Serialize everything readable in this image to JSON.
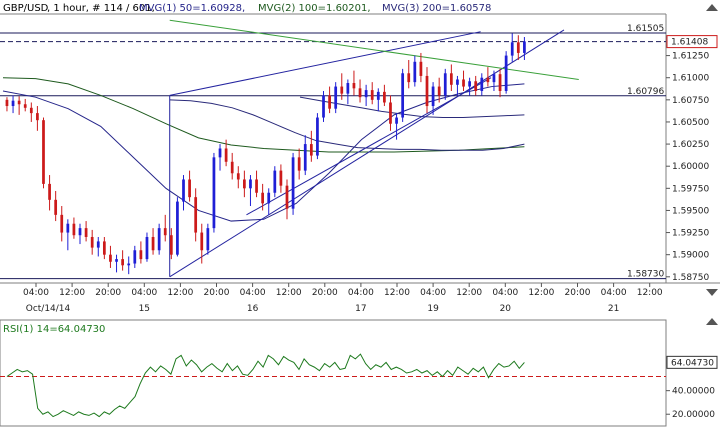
{
  "header": {
    "symbol": "GBP/USD",
    "info": ", 1 hour, # 114 / 601,",
    "mvg1": "MVG(1) 50=1.60928,",
    "mvg2": "MVG(2) 100=1.60201,",
    "mvg3": "MVG(3) 200=1.60578",
    "rsi": "RSI(1) 14=64.04730"
  },
  "colors": {
    "bull": "#1f1fd6",
    "bear": "#cc1a1a",
    "ma50": "#25258a",
    "ma100": "#1e5a1e",
    "ma200": "#2a2a7a",
    "trend": "#2424a0",
    "greenLine": "#3aa03a",
    "rsi": "#1e7a1e",
    "rsiLevel": "#cc1a1a",
    "dashed": "#1a1a5a"
  },
  "chart_data": [
    {
      "type": "candlestick",
      "title": "GBP/USD , 1 hour, # 114 / 601",
      "ylim": [
        1.5868,
        1.6172
      ],
      "yticks": [
        "1.61250",
        "1.61000",
        "1.60750",
        "1.60500",
        "1.60250",
        "1.60000",
        "1.59750",
        "1.59500",
        "1.59250",
        "1.59000",
        "1.58750"
      ],
      "price_labels": {
        "top": "1.61505",
        "current": "1.61408",
        "mid": "1.60796",
        "bottom": "1.58730"
      },
      "xticks": [
        {
          "t": "04:00",
          "d": "Oct/14/14"
        },
        {
          "t": "12:00",
          "d": ""
        },
        {
          "t": "20:00",
          "d": ""
        },
        {
          "t": "04:00",
          "d": "15"
        },
        {
          "t": "12:00",
          "d": ""
        },
        {
          "t": "20:00",
          "d": ""
        },
        {
          "t": "04:00",
          "d": "16"
        },
        {
          "t": "12:00",
          "d": ""
        },
        {
          "t": "20:00",
          "d": ""
        },
        {
          "t": "04:00",
          "d": "17"
        },
        {
          "t": "12:00",
          "d": ""
        },
        {
          "t": "04:00",
          "d": "19"
        },
        {
          "t": "12:00",
          "d": ""
        },
        {
          "t": "04:00",
          "d": "20"
        },
        {
          "t": "12:00",
          "d": ""
        },
        {
          "t": "20:00",
          "d": ""
        },
        {
          "t": "04:00",
          "d": "21"
        },
        {
          "t": "12:00",
          "d": ""
        }
      ],
      "series": [
        {
          "name": "MVG(1) 50",
          "value": "1.60928",
          "values": [
            1.6085,
            1.6078,
            1.6065,
            1.6045,
            1.601,
            1.5975,
            1.595,
            1.5938,
            1.594,
            1.5958,
            1.5992,
            1.603,
            1.6058,
            1.6072,
            1.6082,
            1.609,
            1.6093
          ]
        },
        {
          "name": "MVG(2) 100",
          "value": "1.60201",
          "values": [
            1.61,
            1.6099,
            1.6093,
            1.608,
            1.6065,
            1.6048,
            1.6032,
            1.6024,
            1.602,
            1.6018,
            1.6016,
            1.6016,
            1.6016,
            1.6017,
            1.6018,
            1.602,
            1.6022
          ]
        },
        {
          "name": "MVG(3) 200",
          "value": "1.60578",
          "values": [
            1.6078,
            1.6074,
            1.607,
            1.6066,
            1.6062,
            1.6059,
            1.6056,
            1.6055,
            1.6055,
            1.6056,
            1.6057,
            1.6058
          ]
        },
        {
          "name": "series4",
          "values": [
            1.6075,
            1.6074,
            1.6071,
            1.6066,
            1.6058,
            1.6048,
            1.6038,
            1.6029,
            1.6025,
            1.6021,
            1.602,
            1.6019,
            1.6019,
            1.6018,
            1.6018,
            1.6018,
            1.602,
            1.6025
          ]
        }
      ],
      "candles": [
        [
          1.6075,
          1.6078,
          1.6062,
          1.6068
        ],
        [
          1.6068,
          1.608,
          1.606,
          1.6074
        ],
        [
          1.6074,
          1.6079,
          1.6058,
          1.607
        ],
        [
          1.607,
          1.6076,
          1.6062,
          1.6066
        ],
        [
          1.6066,
          1.6072,
          1.605,
          1.606
        ],
        [
          1.606,
          1.6068,
          1.604,
          1.6052
        ],
        [
          1.6052,
          1.6055,
          1.5975,
          1.598
        ],
        [
          1.598,
          1.599,
          1.595,
          1.5962
        ],
        [
          1.5962,
          1.5972,
          1.5938,
          1.5945
        ],
        [
          1.5945,
          1.5955,
          1.5915,
          1.5925
        ],
        [
          1.5925,
          1.594,
          1.5905,
          1.5935
        ],
        [
          1.5935,
          1.5942,
          1.5918,
          1.5922
        ],
        [
          1.5922,
          1.5935,
          1.5912,
          1.593
        ],
        [
          1.593,
          1.5938,
          1.5915,
          1.592
        ],
        [
          1.592,
          1.5928,
          1.59,
          1.5908
        ],
        [
          1.5908,
          1.592,
          1.5898,
          1.5915
        ],
        [
          1.5915,
          1.592,
          1.5895,
          1.59
        ],
        [
          1.59,
          1.591,
          1.5885,
          1.5892
        ],
        [
          1.5892,
          1.59,
          1.588,
          1.5895
        ],
        [
          1.5895,
          1.5905,
          1.5882,
          1.5888
        ],
        [
          1.5888,
          1.5898,
          1.5878,
          1.589
        ],
        [
          1.589,
          1.591,
          1.5885,
          1.5905
        ],
        [
          1.5905,
          1.5915,
          1.589,
          1.5895
        ],
        [
          1.5895,
          1.5925,
          1.5892,
          1.592
        ],
        [
          1.592,
          1.593,
          1.59,
          1.5905
        ],
        [
          1.5905,
          1.5935,
          1.59,
          1.593
        ],
        [
          1.593,
          1.5945,
          1.5915,
          1.5922
        ],
        [
          1.5922,
          1.593,
          1.5895,
          1.59
        ],
        [
          1.59,
          1.5965,
          1.5898,
          1.596
        ],
        [
          1.596,
          1.599,
          1.595,
          1.5985
        ],
        [
          1.5985,
          1.5995,
          1.596,
          1.5965
        ],
        [
          1.5965,
          1.5975,
          1.5915,
          1.5925
        ],
        [
          1.5925,
          1.5935,
          1.589,
          1.5905
        ],
        [
          1.5905,
          1.5935,
          1.59,
          1.593
        ],
        [
          1.593,
          1.6015,
          1.5925,
          1.601
        ],
        [
          1.601,
          1.6025,
          1.5995,
          1.602
        ],
        [
          1.602,
          1.603,
          1.6,
          1.6005
        ],
        [
          1.6005,
          1.6015,
          1.5985,
          1.5992
        ],
        [
          1.5992,
          1.6,
          1.5975,
          1.5985
        ],
        [
          1.5985,
          1.5995,
          1.5965,
          1.5975
        ],
        [
          1.5975,
          1.599,
          1.5955,
          1.5985
        ],
        [
          1.5985,
          1.5995,
          1.5965,
          1.597
        ],
        [
          1.597,
          1.598,
          1.595,
          1.5958
        ],
        [
          1.5958,
          1.5975,
          1.5945,
          1.597
        ],
        [
          1.597,
          1.6,
          1.5965,
          1.5995
        ],
        [
          1.5995,
          1.6002,
          1.597,
          1.5978
        ],
        [
          1.5978,
          1.5985,
          1.594,
          1.5952
        ],
        [
          1.5952,
          1.6015,
          1.5945,
          1.601
        ],
        [
          1.601,
          1.602,
          1.5985,
          1.5995
        ],
        [
          1.5995,
          1.6035,
          1.599,
          1.6025
        ],
        [
          1.6025,
          1.604,
          1.6005,
          1.6012
        ],
        [
          1.6012,
          1.606,
          1.6008,
          1.6055
        ],
        [
          1.6055,
          1.6085,
          1.605,
          1.608
        ],
        [
          1.608,
          1.609,
          1.606,
          1.6065
        ],
        [
          1.6065,
          1.6095,
          1.606,
          1.609
        ],
        [
          1.609,
          1.6105,
          1.6075,
          1.6082
        ],
        [
          1.6082,
          1.6098,
          1.607,
          1.6094
        ],
        [
          1.6094,
          1.6108,
          1.608,
          1.6088
        ],
        [
          1.6088,
          1.6098,
          1.6072,
          1.6078
        ],
        [
          1.6078,
          1.6092,
          1.6068,
          1.6086
        ],
        [
          1.6086,
          1.6095,
          1.607,
          1.6075
        ],
        [
          1.6075,
          1.6088,
          1.6062,
          1.6084
        ],
        [
          1.6084,
          1.6092,
          1.6068,
          1.6072
        ],
        [
          1.6072,
          1.608,
          1.604,
          1.6048
        ],
        [
          1.6048,
          1.606,
          1.603,
          1.6055
        ],
        [
          1.6055,
          1.611,
          1.605,
          1.6105
        ],
        [
          1.6105,
          1.612,
          1.6088,
          1.6095
        ],
        [
          1.6095,
          1.6125,
          1.609,
          1.6118
        ],
        [
          1.6118,
          1.6128,
          1.6095,
          1.6102
        ],
        [
          1.6102,
          1.6112,
          1.606,
          1.6068
        ],
        [
          1.6068,
          1.6095,
          1.6058,
          1.609
        ],
        [
          1.609,
          1.61,
          1.6072,
          1.608
        ],
        [
          1.608,
          1.611,
          1.6075,
          1.6105
        ],
        [
          1.6105,
          1.6115,
          1.6085,
          1.6092
        ],
        [
          1.6092,
          1.6102,
          1.608,
          1.6098
        ],
        [
          1.6098,
          1.6108,
          1.6085,
          1.609
        ],
        [
          1.609,
          1.61,
          1.608,
          1.6096
        ],
        [
          1.6096,
          1.6102,
          1.608,
          1.6085
        ],
        [
          1.6085,
          1.6105,
          1.608,
          1.61
        ],
        [
          1.61,
          1.6112,
          1.609,
          1.6095
        ],
        [
          1.6095,
          1.6108,
          1.6085,
          1.6104
        ],
        [
          1.6104,
          1.611,
          1.6078,
          1.6085
        ],
        [
          1.6085,
          1.613,
          1.6082,
          1.6125
        ],
        [
          1.6125,
          1.615,
          1.6118,
          1.614
        ],
        [
          1.614,
          1.6148,
          1.612,
          1.6128
        ],
        [
          1.6128,
          1.6146,
          1.612,
          1.6141
        ]
      ],
      "trendlines": [
        {
          "name": "channel-upper",
          "points": [
            [
              0.2526,
              1.608
            ],
            [
              0.7237,
              1.6152
            ]
          ]
        },
        {
          "name": "channel-lower",
          "points": [
            [
              0.2526,
              1.5875
            ],
            [
              0.85,
              1.6154
            ]
          ]
        },
        {
          "name": "inner-trend",
          "points": [
            [
              0.3689,
              1.5945
            ],
            [
              0.7395,
              1.61
            ]
          ]
        },
        {
          "name": "green-line",
          "points": [
            [
              0.2526,
              1.6165
            ],
            [
              0.8724,
              1.6098
            ]
          ]
        },
        {
          "name": "vertical-marker",
          "points": [
            [
              0.2526,
              1.5875
            ],
            [
              0.2526,
              1.608
            ]
          ]
        }
      ],
      "hlines": [
        {
          "name": "top",
          "value": 1.61505,
          "style": "solid"
        },
        {
          "name": "current",
          "value": 1.61408,
          "style": "dashed"
        },
        {
          "name": "mid",
          "value": 1.60796,
          "style": "solid"
        },
        {
          "name": "bottom",
          "value": 1.5873,
          "style": "solid"
        }
      ]
    },
    {
      "type": "line",
      "title": "RSI(1) 14=64.04730",
      "ylim": [
        10,
        100
      ],
      "yticks": [
        "40.00000",
        "20.00000"
      ],
      "current_label": "64.04730",
      "level": 52,
      "series": [
        {
          "name": "RSI(1) 14",
          "values": [
            52,
            55,
            58,
            56,
            57,
            54,
            25,
            20,
            22,
            18,
            20,
            23,
            21,
            19,
            22,
            20,
            19,
            21,
            18,
            22,
            20,
            24,
            27,
            25,
            30,
            35,
            46,
            55,
            60,
            56,
            61,
            58,
            54,
            67,
            70,
            61,
            66,
            62,
            56,
            60,
            63,
            59,
            56,
            63,
            57,
            61,
            54,
            53,
            58,
            65,
            60,
            70,
            67,
            62,
            69,
            66,
            64,
            58,
            67,
            62,
            60,
            57,
            63,
            60,
            64,
            58,
            59,
            70,
            67,
            71,
            63,
            58,
            62,
            60,
            64,
            58,
            60,
            58,
            55,
            56,
            58,
            55,
            57,
            53,
            56,
            52,
            57,
            53,
            60,
            57,
            54,
            59,
            56,
            60,
            51,
            58,
            63,
            60,
            61,
            65,
            59,
            64
          ]
        }
      ]
    }
  ]
}
